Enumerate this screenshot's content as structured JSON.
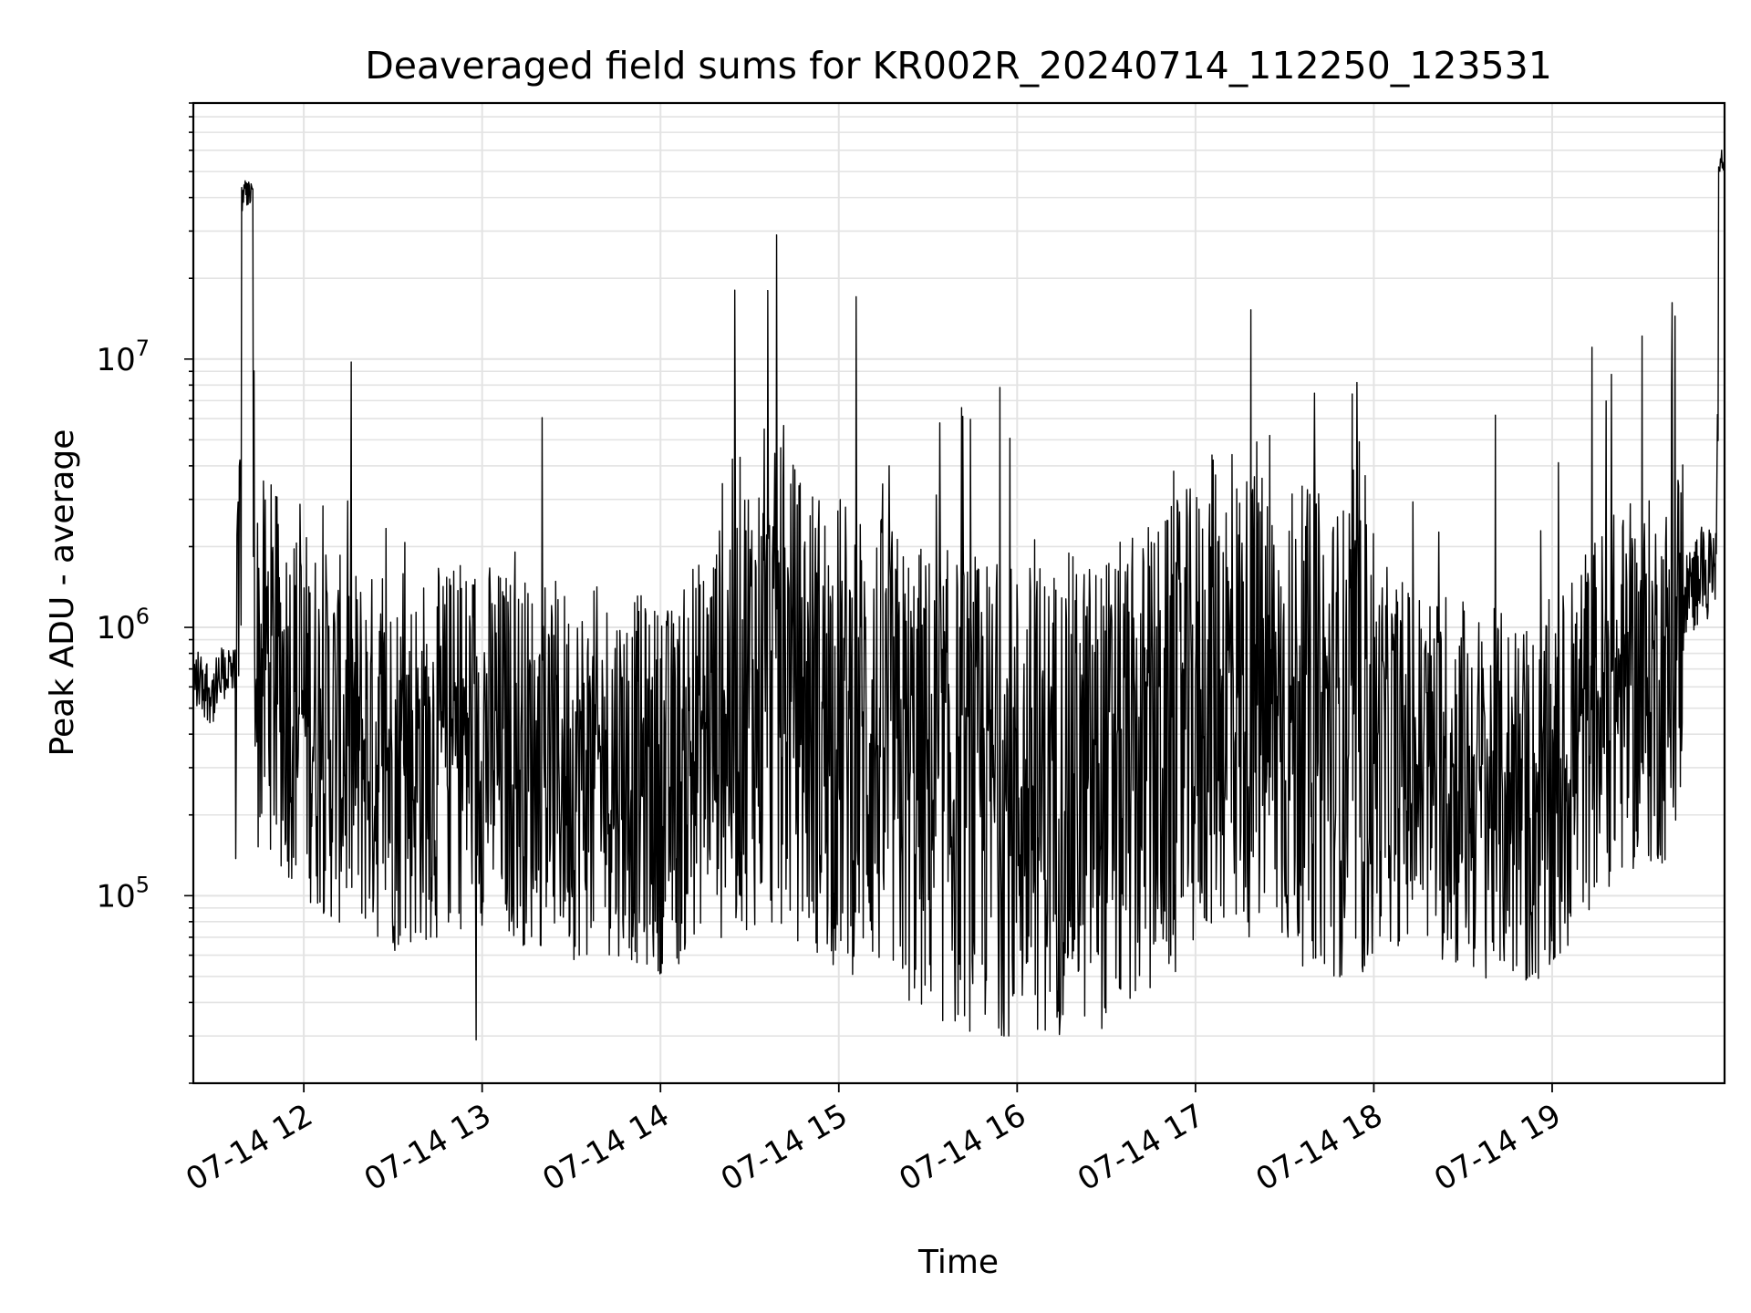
{
  "chart_data": {
    "type": "line",
    "title": "Deaveraged field sums for KR002R_20240714_112250_123531",
    "xlabel": "Time",
    "ylabel": "Peak ADU - average",
    "yscale": "log",
    "grid": true,
    "grid_minor": true,
    "ylim": [
      20000,
      90000000
    ],
    "xlim": [
      "2024-07-14 11:22:50",
      "2024-07-14 19:58:00"
    ],
    "x_ticks": [
      {
        "time": "2024-07-14 12:00",
        "label": "07-14 12"
      },
      {
        "time": "2024-07-14 13:00",
        "label": "07-14 13"
      },
      {
        "time": "2024-07-14 14:00",
        "label": "07-14 14"
      },
      {
        "time": "2024-07-14 15:00",
        "label": "07-14 15"
      },
      {
        "time": "2024-07-14 16:00",
        "label": "07-14 16"
      },
      {
        "time": "2024-07-14 17:00",
        "label": "07-14 17"
      },
      {
        "time": "2024-07-14 18:00",
        "label": "07-14 18"
      },
      {
        "time": "2024-07-14 19:00",
        "label": "07-14 19"
      }
    ],
    "y_ticks": [
      {
        "value": 100000,
        "base": "10",
        "exp": "5"
      },
      {
        "value": 1000000,
        "base": "10",
        "exp": "6"
      },
      {
        "value": 10000000,
        "base": "10",
        "exp": "7"
      }
    ],
    "line_color": "#000000",
    "grid_color": "#e3e3e3",
    "series": [
      {
        "x": [
          "2024-07-14 11:22:50",
          "2024-07-14 11:26",
          "2024-07-14 11:30",
          "2024-07-14 11:34",
          "2024-07-14 11:38",
          "2024-07-14 11:40",
          "2024-07-14 11:42",
          "2024-07-14 11:44",
          "2024-07-14 11:46",
          "2024-07-14 11:48",
          "2024-07-14 11:50",
          "2024-07-14 11:52",
          "2024-07-14 11:56",
          "2024-07-14 12:00",
          "2024-07-14 12:05",
          "2024-07-14 12:10",
          "2024-07-14 12:20",
          "2024-07-14 12:30",
          "2024-07-14 12:40",
          "2024-07-14 12:50",
          "2024-07-14 12:58",
          "2024-07-14 13:05",
          "2024-07-14 13:15",
          "2024-07-14 13:25",
          "2024-07-14 13:35",
          "2024-07-14 13:45",
          "2024-07-14 13:55",
          "2024-07-14 14:05",
          "2024-07-14 14:12",
          "2024-07-14 14:20",
          "2024-07-14 14:30",
          "2024-07-14 14:36",
          "2024-07-14 14:40",
          "2024-07-14 14:48",
          "2024-07-14 14:58",
          "2024-07-14 15:10",
          "2024-07-14 15:20",
          "2024-07-14 15:30",
          "2024-07-14 15:45",
          "2024-07-14 16:00",
          "2024-07-14 16:15",
          "2024-07-14 16:30",
          "2024-07-14 16:45",
          "2024-07-14 17:00",
          "2024-07-14 17:07",
          "2024-07-14 17:15",
          "2024-07-14 17:30",
          "2024-07-14 17:45",
          "2024-07-14 18:00",
          "2024-07-14 18:15",
          "2024-07-14 18:30",
          "2024-07-14 18:45",
          "2024-07-14 19:00",
          "2024-07-14 19:10",
          "2024-07-14 19:20",
          "2024-07-14 19:30",
          "2024-07-14 19:40",
          "2024-07-14 19:45",
          "2024-07-14 19:50",
          "2024-07-14 19:55",
          "2024-07-14 19:57"
        ],
        "y": [
          650000,
          620000,
          560000,
          700000,
          600000,
          40000000,
          45000000,
          650000,
          700000,
          800000,
          650000,
          600000,
          550000,
          500000,
          420000,
          380000,
          350000,
          300000,
          320000,
          350000,
          400000,
          350000,
          320000,
          300000,
          280000,
          300000,
          260000,
          250000,
          350000,
          500000,
          600000,
          550000,
          600000,
          500000,
          420000,
          380000,
          300000,
          260000,
          240000,
          230000,
          240000,
          250000,
          300000,
          450000,
          600000,
          550000,
          450000,
          400000,
          350000,
          300000,
          250000,
          230000,
          200000,
          400000,
          550000,
          600000,
          650000,
          1300000,
          1600000,
          1500000,
          60000000
        ],
        "band": {
          "enabled": true,
          "spikes_up": [
            2000000,
            1500000,
            2500000,
            1800000,
            1200000,
            1000000,
            1300000
          ],
          "spikes_down": [
            60000,
            50000,
            45000,
            40000,
            38000,
            42000
          ]
        }
      }
    ],
    "notable_peaks": [
      {
        "time": "2024-07-14 11:41",
        "value": 45000000
      },
      {
        "time": "2024-07-14 14:36",
        "value": 18000000
      },
      {
        "time": "2024-07-14 14:39",
        "value": 29000000
      },
      {
        "time": "2024-07-14 15:17",
        "value": 4000000
      },
      {
        "time": "2024-07-14 17:06",
        "value": 4200000
      },
      {
        "time": "2024-07-14 19:57",
        "value": 60000000
      }
    ],
    "notable_troughs": [
      {
        "time": "2024-07-14 12:58",
        "value": 29000
      }
    ]
  }
}
